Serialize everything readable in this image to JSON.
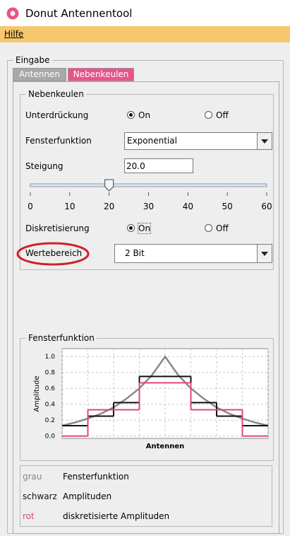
{
  "window": {
    "title": "Donut Antennentool"
  },
  "menu": {
    "items": [
      "Hilfe"
    ]
  },
  "input_panel": {
    "title": "Eingabe"
  },
  "tabs": {
    "items": [
      "Antennen",
      "Nebenkeulen"
    ],
    "selected": 1
  },
  "sidelobes": {
    "title": "Nebenkeulen",
    "suppression": {
      "label": "Unterdrückung",
      "options": [
        "On",
        "Off"
      ],
      "selected": 0
    },
    "window_function": {
      "label": "Fensterfunktion",
      "value": "Exponential"
    },
    "slope": {
      "label": "Steigung",
      "value": "20.0",
      "slider": {
        "min": 0,
        "max": 60,
        "value": 20,
        "ticks": [
          0,
          10,
          20,
          30,
          40,
          50,
          60
        ]
      }
    },
    "discretization": {
      "label": "Diskretisierung",
      "options": [
        "On",
        "Off"
      ],
      "selected": 0
    },
    "value_range": {
      "label": "Wertebereich",
      "value": "2 Bit"
    }
  },
  "chart_group": {
    "title": "Fensterfunktion"
  },
  "chart": {
    "type": "line",
    "ylabel": "Amplitude",
    "xlabel": "Antennen",
    "xlim": [
      0,
      8
    ],
    "xticks": [
      0,
      1,
      2,
      3,
      4,
      5,
      6,
      7,
      8
    ],
    "ylim": [
      -0.03,
      1.1
    ],
    "yticks": [
      {
        "value": 0,
        "label": "0.0"
      },
      {
        "value": 0.2,
        "label": "0.2"
      },
      {
        "value": 0.4,
        "label": "0.4"
      },
      {
        "value": 0.6,
        "label": "0.6"
      },
      {
        "value": 0.8,
        "label": "0.8"
      },
      {
        "value": 1,
        "label": "1.0"
      }
    ],
    "grid": true,
    "curve": {
      "color": "#888888",
      "x": [
        0,
        0.5,
        1,
        1.5,
        2,
        2.5,
        3,
        3.5,
        4,
        4.5,
        5,
        5.5,
        6,
        6.5,
        7,
        7.5,
        8
      ],
      "values": [
        0.13,
        0.17,
        0.22,
        0.28,
        0.36,
        0.47,
        0.6,
        0.77,
        1,
        0.77,
        0.6,
        0.47,
        0.36,
        0.28,
        0.22,
        0.17,
        0.13
      ]
    },
    "steps": [
      {
        "color": "#111111",
        "values": [
          0.13,
          0.25,
          0.42,
          0.75,
          0.75,
          0.42,
          0.25,
          0.13
        ]
      },
      {
        "color": "#e0457b",
        "values": [
          0,
          0.33,
          0.33,
          0.67,
          0.67,
          0.33,
          0.33,
          0
        ]
      }
    ]
  },
  "legend": {
    "items": [
      {
        "key": "grau",
        "text": "Fensterfunktion",
        "color": "#888888"
      },
      {
        "key": "schwarz",
        "text": "Amplituden",
        "color": "#111111"
      },
      {
        "key": "rot",
        "text": "diskretisierte Amplituden",
        "color": "#e0457b"
      }
    ]
  }
}
